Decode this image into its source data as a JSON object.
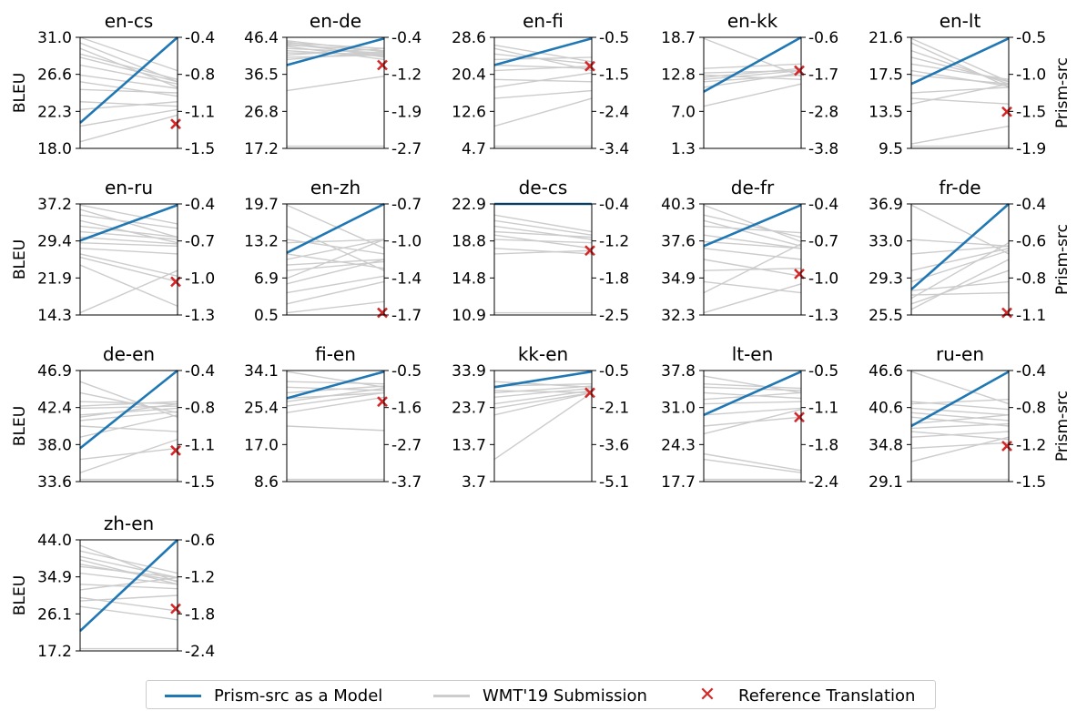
{
  "chart_data": {
    "type": "line",
    "left_axis_label": "BLEU",
    "right_axis_label": "Prism-src",
    "colors": {
      "model": "#1f77b4",
      "submission": "#cccccc",
      "reference": "#d62728"
    },
    "legend": [
      {
        "key": "model",
        "label": "Prism-src as a Model"
      },
      {
        "key": "submission",
        "label": "WMT'19 Submission"
      },
      {
        "key": "reference",
        "label": "Reference Translation"
      }
    ],
    "panels": [
      {
        "title": "en-cs",
        "left_ticks": [
          "31.0",
          "26.6",
          "22.3",
          "18.0"
        ],
        "right_ticks": [
          "-0.4",
          "-0.8",
          "-1.1",
          "-1.5"
        ],
        "model": [
          0.23,
          1.0
        ],
        "reference": 0.22,
        "submissions": [
          [
            1.0,
            0.7
          ],
          [
            0.95,
            0.6
          ],
          [
            0.9,
            0.55
          ],
          [
            0.85,
            0.62
          ],
          [
            0.82,
            0.6
          ],
          [
            0.75,
            0.58
          ],
          [
            0.66,
            0.54
          ],
          [
            0.6,
            0.47
          ],
          [
            0.53,
            0.5
          ],
          [
            0.42,
            0.38
          ],
          [
            0.35,
            0.42
          ],
          [
            0.2,
            0.35
          ],
          [
            0.06,
            0.3
          ]
        ]
      },
      {
        "title": "en-de",
        "left_ticks": [
          "46.4",
          "36.5",
          "26.8",
          "17.2"
        ],
        "right_ticks": [
          "-0.4",
          "-1.2",
          "-1.9",
          "-2.7"
        ],
        "model": [
          0.75,
          0.99
        ],
        "reference": 0.75,
        "submissions": [
          [
            0.97,
            0.87
          ],
          [
            0.96,
            0.82
          ],
          [
            0.95,
            0.9
          ],
          [
            0.94,
            0.84
          ],
          [
            0.93,
            0.88
          ],
          [
            0.92,
            0.8
          ],
          [
            0.9,
            0.86
          ],
          [
            0.88,
            0.83
          ],
          [
            0.86,
            0.85
          ],
          [
            0.84,
            0.9
          ],
          [
            0.82,
            0.84
          ],
          [
            0.8,
            0.87
          ],
          [
            0.52,
            0.65
          ],
          [
            0.02,
            0.02
          ]
        ]
      },
      {
        "title": "en-fi",
        "left_ticks": [
          "28.6",
          "20.4",
          "12.6",
          "4.7"
        ],
        "right_ticks": [
          "-0.5",
          "-1.5",
          "-2.4",
          "-3.4"
        ],
        "model": [
          0.75,
          0.99
        ],
        "reference": 0.74,
        "submissions": [
          [
            0.93,
            0.78
          ],
          [
            0.9,
            0.7
          ],
          [
            0.85,
            0.76
          ],
          [
            0.8,
            0.82
          ],
          [
            0.75,
            0.72
          ],
          [
            0.7,
            0.74
          ],
          [
            0.62,
            0.6
          ],
          [
            0.55,
            0.68
          ],
          [
            0.45,
            0.52
          ],
          [
            0.2,
            0.45
          ],
          [
            0.02,
            0.02
          ]
        ]
      },
      {
        "title": "en-kk",
        "left_ticks": [
          "18.7",
          "12.8",
          "7.0",
          "1.3"
        ],
        "right_ticks": [
          "-0.6",
          "-1.7",
          "-2.8",
          "-3.8"
        ],
        "model": [
          0.51,
          1.0
        ],
        "reference": 0.7,
        "submissions": [
          [
            0.99,
            0.65
          ],
          [
            0.72,
            0.76
          ],
          [
            0.68,
            0.7
          ],
          [
            0.66,
            0.62
          ],
          [
            0.64,
            0.72
          ],
          [
            0.62,
            0.7
          ],
          [
            0.6,
            0.66
          ],
          [
            0.55,
            0.68
          ],
          [
            0.38,
            0.58
          ]
        ]
      },
      {
        "title": "en-lt",
        "left_ticks": [
          "21.6",
          "17.5",
          "13.5",
          "9.5"
        ],
        "right_ticks": [
          "-0.5",
          "-1.0",
          "-1.5",
          "-1.9"
        ],
        "model": [
          0.58,
          0.99
        ],
        "reference": 0.33,
        "submissions": [
          [
            0.99,
            0.6
          ],
          [
            0.95,
            0.55
          ],
          [
            0.88,
            0.58
          ],
          [
            0.82,
            0.6
          ],
          [
            0.76,
            0.62
          ],
          [
            0.7,
            0.56
          ],
          [
            0.66,
            0.58
          ],
          [
            0.5,
            0.55
          ],
          [
            0.45,
            0.4
          ],
          [
            0.4,
            0.58
          ],
          [
            0.04,
            0.2
          ],
          [
            0.02,
            0.02
          ]
        ]
      },
      {
        "title": "en-ru",
        "left_ticks": [
          "37.2",
          "29.4",
          "21.9",
          "14.3"
        ],
        "right_ticks": [
          "-0.4",
          "-0.7",
          "-1.0",
          "-1.3"
        ],
        "model": [
          0.67,
          0.99
        ],
        "reference": 0.3,
        "submissions": [
          [
            0.99,
            0.82
          ],
          [
            0.95,
            0.7
          ],
          [
            0.9,
            0.78
          ],
          [
            0.85,
            0.65
          ],
          [
            0.8,
            0.7
          ],
          [
            0.75,
            0.68
          ],
          [
            0.7,
            0.64
          ],
          [
            0.65,
            0.62
          ],
          [
            0.6,
            0.55
          ],
          [
            0.55,
            0.35
          ],
          [
            0.52,
            0.3
          ],
          [
            0.45,
            0.08
          ],
          [
            0.02,
            0.4
          ]
        ]
      },
      {
        "title": "en-zh",
        "left_ticks": [
          "19.7",
          "13.2",
          "6.9",
          "0.5"
        ],
        "right_ticks": [
          "-0.7",
          "-1.0",
          "-1.4",
          "-1.7"
        ],
        "model": [
          0.56,
          1.0
        ],
        "reference": 0.02,
        "submissions": [
          [
            0.99,
            0.6
          ],
          [
            0.8,
            0.4
          ],
          [
            0.68,
            0.55
          ],
          [
            0.65,
            0.68
          ],
          [
            0.55,
            0.42
          ],
          [
            0.5,
            0.68
          ],
          [
            0.45,
            0.5
          ],
          [
            0.4,
            0.48
          ],
          [
            0.33,
            0.68
          ],
          [
            0.28,
            0.5
          ],
          [
            0.2,
            0.35
          ],
          [
            0.1,
            0.3
          ],
          [
            0.02,
            0.12
          ]
        ]
      },
      {
        "title": "de-cs",
        "left_ticks": [
          "22.9",
          "18.8",
          "14.8",
          "10.9"
        ],
        "right_ticks": [
          "-0.4",
          "-1.2",
          "-1.8",
          "-2.5"
        ],
        "model": [
          1.0,
          1.0
        ],
        "reference": 0.58,
        "submissions": [
          [
            0.9,
            0.75
          ],
          [
            0.85,
            0.72
          ],
          [
            0.8,
            0.68
          ],
          [
            0.75,
            0.7
          ],
          [
            0.72,
            0.6
          ],
          [
            0.68,
            0.65
          ],
          [
            0.6,
            0.55
          ],
          [
            0.55,
            0.58
          ],
          [
            0.02,
            0.02
          ]
        ]
      },
      {
        "title": "de-fr",
        "left_ticks": [
          "40.3",
          "37.6",
          "34.9",
          "32.3"
        ],
        "right_ticks": [
          "-0.4",
          "-0.7",
          "-1.0",
          "-1.3"
        ],
        "model": [
          0.62,
          0.99
        ],
        "reference": 0.37,
        "submissions": [
          [
            0.99,
            0.66
          ],
          [
            0.9,
            0.7
          ],
          [
            0.85,
            0.62
          ],
          [
            0.8,
            0.74
          ],
          [
            0.72,
            0.6
          ],
          [
            0.66,
            0.6
          ],
          [
            0.6,
            0.5
          ],
          [
            0.5,
            0.35
          ],
          [
            0.4,
            0.42
          ],
          [
            0.3,
            0.2
          ],
          [
            0.2,
            0.64
          ],
          [
            0.02,
            0.28
          ]
        ]
      },
      {
        "title": "fr-de",
        "left_ticks": [
          "36.9",
          "33.0",
          "29.3",
          "25.5"
        ],
        "right_ticks": [
          "-0.4",
          "-0.6",
          "-0.8",
          "-1.1"
        ],
        "model": [
          0.23,
          1.0
        ],
        "reference": 0.02,
        "submissions": [
          [
            0.99,
            0.55
          ],
          [
            0.68,
            0.62
          ],
          [
            0.55,
            0.62
          ],
          [
            0.4,
            0.6
          ],
          [
            0.3,
            0.58
          ],
          [
            0.22,
            0.3
          ],
          [
            0.18,
            0.2
          ],
          [
            0.15,
            0.65
          ],
          [
            0.1,
            0.4
          ],
          [
            0.05,
            0.5
          ]
        ]
      },
      {
        "title": "de-en",
        "left_ticks": [
          "46.9",
          "42.4",
          "38.0",
          "33.6"
        ],
        "right_ticks": [
          "-0.4",
          "-0.8",
          "-1.1",
          "-1.5"
        ],
        "model": [
          0.3,
          1.0
        ],
        "reference": 0.28,
        "submissions": [
          [
            0.9,
            0.58
          ],
          [
            0.8,
            0.62
          ],
          [
            0.72,
            0.7
          ],
          [
            0.68,
            0.72
          ],
          [
            0.66,
            0.68
          ],
          [
            0.6,
            0.66
          ],
          [
            0.58,
            0.7
          ],
          [
            0.55,
            0.63
          ],
          [
            0.5,
            0.45
          ],
          [
            0.4,
            0.6
          ],
          [
            0.2,
            0.3
          ],
          [
            0.08,
            0.38
          ],
          [
            0.02,
            0.02
          ]
        ]
      },
      {
        "title": "fi-en",
        "left_ticks": [
          "34.1",
          "25.4",
          "17.0",
          "8.6"
        ],
        "right_ticks": [
          "-0.5",
          "-1.6",
          "-2.7",
          "-3.7"
        ],
        "model": [
          0.75,
          0.99
        ],
        "reference": 0.72,
        "submissions": [
          [
            0.99,
            0.85
          ],
          [
            0.9,
            0.88
          ],
          [
            0.85,
            0.82
          ],
          [
            0.8,
            0.86
          ],
          [
            0.75,
            0.8
          ],
          [
            0.72,
            0.84
          ],
          [
            0.68,
            0.8
          ],
          [
            0.62,
            0.76
          ],
          [
            0.5,
            0.46
          ],
          [
            0.02,
            0.02
          ]
        ]
      },
      {
        "title": "kk-en",
        "left_ticks": [
          "33.9",
          "23.7",
          "13.7",
          "3.7"
        ],
        "right_ticks": [
          "-0.5",
          "-2.1",
          "-3.6",
          "-5.1"
        ],
        "model": [
          0.85,
          0.99
        ],
        "reference": 0.8,
        "submissions": [
          [
            0.9,
            0.85
          ],
          [
            0.86,
            0.88
          ],
          [
            0.82,
            0.8
          ],
          [
            0.8,
            0.86
          ],
          [
            0.76,
            0.84
          ],
          [
            0.7,
            0.82
          ],
          [
            0.66,
            0.8
          ],
          [
            0.6,
            0.8
          ],
          [
            0.2,
            0.8
          ]
        ]
      },
      {
        "title": "lt-en",
        "left_ticks": [
          "37.8",
          "31.0",
          "24.3",
          "17.7"
        ],
        "right_ticks": [
          "-0.5",
          "-1.1",
          "-1.8",
          "-2.4"
        ],
        "model": [
          0.6,
          0.99
        ],
        "reference": 0.58,
        "submissions": [
          [
            0.95,
            0.8
          ],
          [
            0.88,
            0.84
          ],
          [
            0.85,
            0.82
          ],
          [
            0.8,
            0.75
          ],
          [
            0.74,
            0.8
          ],
          [
            0.7,
            0.72
          ],
          [
            0.6,
            0.66
          ],
          [
            0.5,
            0.58
          ],
          [
            0.43,
            0.65
          ],
          [
            0.25,
            0.1
          ],
          [
            0.2,
            0.08
          ],
          [
            0.02,
            0.02
          ]
        ]
      },
      {
        "title": "ru-en",
        "left_ticks": [
          "46.6",
          "40.6",
          "34.8",
          "29.1"
        ],
        "right_ticks": [
          "-0.4",
          "-0.8",
          "-1.2",
          "-1.5"
        ],
        "model": [
          0.5,
          0.99
        ],
        "reference": 0.32,
        "submissions": [
          [
            0.99,
            0.7
          ],
          [
            0.72,
            0.65
          ],
          [
            0.7,
            0.74
          ],
          [
            0.66,
            0.6
          ],
          [
            0.62,
            0.55
          ],
          [
            0.58,
            0.5
          ],
          [
            0.52,
            0.6
          ],
          [
            0.48,
            0.52
          ],
          [
            0.45,
            0.38
          ],
          [
            0.4,
            0.45
          ],
          [
            0.3,
            0.35
          ],
          [
            0.18,
            0.4
          ],
          [
            0.02,
            0.02
          ]
        ]
      },
      {
        "title": "zh-en",
        "left_ticks": [
          "44.0",
          "34.9",
          "26.1",
          "17.2"
        ],
        "right_ticks": [
          "-0.6",
          "-1.2",
          "-1.8",
          "-2.4"
        ],
        "model": [
          0.18,
          1.0
        ],
        "reference": 0.38,
        "submissions": [
          [
            0.95,
            0.62
          ],
          [
            0.9,
            0.7
          ],
          [
            0.85,
            0.66
          ],
          [
            0.82,
            0.6
          ],
          [
            0.78,
            0.63
          ],
          [
            0.76,
            0.66
          ],
          [
            0.7,
            0.6
          ],
          [
            0.6,
            0.56
          ],
          [
            0.55,
            0.66
          ],
          [
            0.48,
            0.36
          ],
          [
            0.45,
            0.5
          ],
          [
            0.4,
            0.28
          ],
          [
            0.02,
            0.02
          ]
        ]
      }
    ]
  }
}
